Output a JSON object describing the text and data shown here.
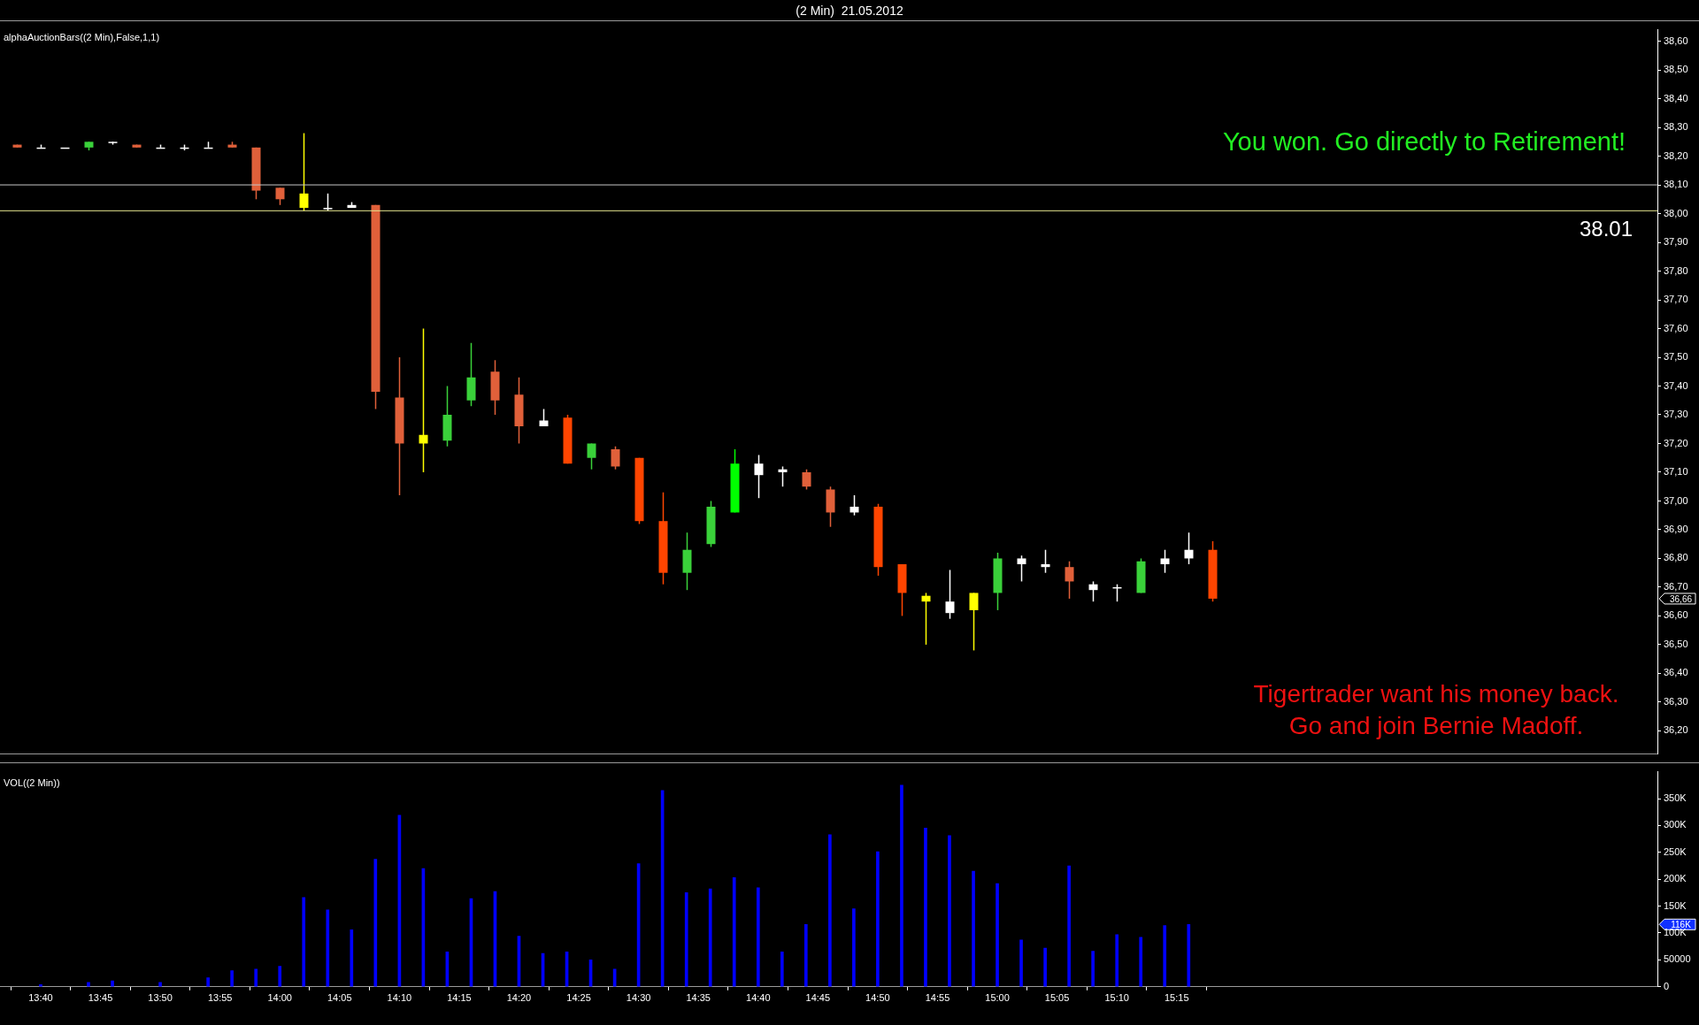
{
  "chart_data": [
    {
      "type": "candlestick",
      "title": "(2 Min)  21.05.2012",
      "x": [
        13.6333,
        13.6667,
        13.7,
        13.7333,
        13.7667,
        13.8,
        13.8333,
        13.8667,
        13.9,
        13.9333,
        13.9667,
        14,
        14.0333,
        14.0667,
        14.1,
        14.1333,
        14.1667,
        14.2,
        14.2333,
        14.2667,
        14.3,
        14.3333,
        14.3667,
        14.4,
        14.4333,
        14.4667,
        14.5,
        14.5333,
        14.5667,
        14.6,
        14.6333,
        14.6667,
        14.7,
        14.7333,
        14.7667,
        14.8,
        14.8333,
        14.8667,
        14.9,
        14.9333,
        14.9667,
        15,
        15.0333,
        15.0667,
        15.1,
        15.1333,
        15.1667,
        15.2,
        15.2333,
        15.2667,
        15.3
      ],
      "ohlc": [
        [
          38.24,
          38.24,
          38.23,
          38.23
        ],
        [
          38.23,
          38.24,
          38.23,
          38.23
        ],
        [
          38.23,
          38.23,
          38.23,
          38.23
        ],
        [
          38.23,
          38.25,
          38.22,
          38.25
        ],
        [
          38.25,
          38.25,
          38.24,
          38.25
        ],
        [
          38.24,
          38.24,
          38.23,
          38.23
        ],
        [
          38.23,
          38.24,
          38.23,
          38.23
        ],
        [
          38.23,
          38.24,
          38.22,
          38.23
        ],
        [
          38.23,
          38.25,
          38.23,
          38.23
        ],
        [
          38.24,
          38.25,
          38.23,
          38.23
        ],
        [
          38.23,
          38.23,
          38.05,
          38.08
        ],
        [
          38.09,
          38.09,
          38.03,
          38.05
        ],
        [
          38.07,
          38.28,
          38.01,
          38.02
        ],
        [
          38.02,
          38.07,
          38.01,
          38.02
        ],
        [
          38.03,
          38.04,
          38.02,
          38.02
        ],
        [
          38.03,
          38.03,
          37.32,
          37.38
        ],
        [
          37.36,
          37.5,
          37.02,
          37.2
        ],
        [
          37.2,
          37.6,
          37.1,
          37.23
        ],
        [
          37.21,
          37.4,
          37.19,
          37.3
        ],
        [
          37.35,
          37.55,
          37.33,
          37.43
        ],
        [
          37.45,
          37.49,
          37.3,
          37.35
        ],
        [
          37.37,
          37.43,
          37.2,
          37.26
        ],
        [
          37.26,
          37.32,
          37.26,
          37.28
        ],
        [
          37.29,
          37.3,
          37.13,
          37.13
        ],
        [
          37.15,
          37.2,
          37.11,
          37.2
        ],
        [
          37.18,
          37.19,
          37.11,
          37.12
        ],
        [
          37.15,
          37.15,
          36.92,
          36.93
        ],
        [
          36.93,
          37.03,
          36.71,
          36.75
        ],
        [
          36.75,
          36.89,
          36.69,
          36.83
        ],
        [
          36.85,
          37,
          36.84,
          36.98
        ],
        [
          36.96,
          37.18,
          36.96,
          37.13
        ],
        [
          37.13,
          37.16,
          37.01,
          37.09
        ],
        [
          37.11,
          37.12,
          37.05,
          37.1
        ],
        [
          37.1,
          37.11,
          37.04,
          37.05
        ],
        [
          37.04,
          37.05,
          36.91,
          36.96
        ],
        [
          36.96,
          37.02,
          36.95,
          36.98
        ],
        [
          36.98,
          36.99,
          36.74,
          36.77
        ],
        [
          36.78,
          36.78,
          36.6,
          36.68
        ],
        [
          36.67,
          36.68,
          36.5,
          36.65
        ],
        [
          36.65,
          36.76,
          36.59,
          36.61
        ],
        [
          36.62,
          36.68,
          36.48,
          36.68
        ],
        [
          36.68,
          36.82,
          36.62,
          36.8
        ],
        [
          36.8,
          36.81,
          36.72,
          36.78
        ],
        [
          36.77,
          36.83,
          36.75,
          36.78
        ],
        [
          36.77,
          36.79,
          36.66,
          36.72
        ],
        [
          36.71,
          36.72,
          36.65,
          36.69
        ],
        [
          36.7,
          36.71,
          36.65,
          36.7
        ],
        [
          36.68,
          36.8,
          36.68,
          36.79
        ],
        [
          36.78,
          36.83,
          36.75,
          36.8
        ],
        [
          36.8,
          36.89,
          36.78,
          36.83
        ],
        [
          36.83,
          36.86,
          36.65,
          36.66
        ]
      ],
      "colors": [
        "#e0603a",
        "#ffffff",
        "#ffffff",
        "#3ad13a",
        "#ffffff",
        "#e0603a",
        "#ffffff",
        "#ffffff",
        "#ffffff",
        "#e0603a",
        "#e0603a",
        "#e0603a",
        "#ffff00",
        "#ffffff",
        "#ffffff",
        "#e0603a",
        "#e0603a",
        "#ffff00",
        "#3ad13a",
        "#3ad13a",
        "#e0603a",
        "#e0603a",
        "#ffffff",
        "#ff4500",
        "#3ad13a",
        "#e0603a",
        "#ff4500",
        "#ff4500",
        "#3ad13a",
        "#3ad13a",
        "#00ff00",
        "#ffffff",
        "#ffffff",
        "#e0603a",
        "#e0603a",
        "#ffffff",
        "#ff4500",
        "#ff4500",
        "#ffff00",
        "#ffffff",
        "#ffff00",
        "#3ad13a",
        "#ffffff",
        "#ffffff",
        "#e0603a",
        "#ffffff",
        "#ffffff",
        "#3ad13a",
        "#ffffff",
        "#ffffff",
        "#ff4500"
      ],
      "xlim": [
        13.61,
        15.92
      ],
      "ylim": [
        36.12,
        38.64
      ],
      "yticks": [
        {
          "value": 36.2,
          "label": "36,20"
        },
        {
          "value": 36.3,
          "label": "36,30"
        },
        {
          "value": 36.4,
          "label": "36,40"
        },
        {
          "value": 36.5,
          "label": "36,50"
        },
        {
          "value": 36.6,
          "label": "36,60"
        },
        {
          "value": 36.7,
          "label": "36,70"
        },
        {
          "value": 36.8,
          "label": "36,80"
        },
        {
          "value": 36.9,
          "label": "36,90"
        },
        {
          "value": 37,
          "label": "37,00"
        },
        {
          "value": 37.1,
          "label": "37,10"
        },
        {
          "value": 37.2,
          "label": "37,20"
        },
        {
          "value": 37.3,
          "label": "37,30"
        },
        {
          "value": 37.4,
          "label": "37,40"
        },
        {
          "value": 37.5,
          "label": "37,50"
        },
        {
          "value": 37.6,
          "label": "37,60"
        },
        {
          "value": 37.7,
          "label": "37,70"
        },
        {
          "value": 37.8,
          "label": "37,80"
        },
        {
          "value": 37.9,
          "label": "37,90"
        },
        {
          "value": 38,
          "label": "38,00"
        },
        {
          "value": 38.1,
          "label": "38,10"
        },
        {
          "value": 38.2,
          "label": "38,20"
        },
        {
          "value": 38.3,
          "label": "38,30"
        },
        {
          "value": 38.4,
          "label": "38,40"
        },
        {
          "value": 38.5,
          "label": "38,50"
        },
        {
          "value": 38.6,
          "label": "38,60"
        }
      ],
      "ref_lines": [
        {
          "axis": "y",
          "value": 38.1,
          "color": "#c8c8c8"
        },
        {
          "axis": "y",
          "value": 38.01,
          "label": "38.01",
          "color": "#e8e890"
        }
      ],
      "annotations": [
        "alphaAuctionBars((2 Min),False,1,1)",
        "You won. Go directly to Retirement!",
        "Tigertrader want his money back.",
        "Go and join Bernie Madoff.",
        "36,66"
      ],
      "tick_labels": "y",
      "grid": false,
      "legend": false
    },
    {
      "type": "bar",
      "x": [
        13.6667,
        13.7333,
        13.7667,
        13.8333,
        13.9,
        13.9333,
        13.9667,
        14,
        14.0333,
        14.0667,
        14.1,
        14.1333,
        14.1667,
        14.2,
        14.2333,
        14.2667,
        14.3,
        14.3333,
        14.3667,
        14.4,
        14.4333,
        14.4667,
        14.5,
        14.5333,
        14.5667,
        14.6,
        14.6333,
        14.6667,
        14.7,
        14.7333,
        14.7667,
        14.8,
        14.8333,
        14.8667,
        14.9,
        14.9333,
        14.9667,
        15,
        15.0333,
        15.0667,
        15.1,
        15.1333,
        15.1667,
        15.2,
        15.2333,
        15.2667
      ],
      "values": [
        4000,
        8000,
        11000,
        8000,
        17000,
        30000,
        33000,
        38000,
        166000,
        143000,
        106000,
        237000,
        319000,
        220000,
        65000,
        164000,
        177000,
        94000,
        62000,
        65000,
        50000,
        33000,
        229000,
        365000,
        175000,
        182000,
        203000,
        184000,
        65000,
        116000,
        283000,
        145000,
        251000,
        375000,
        295000,
        281000,
        215000,
        192000,
        87000,
        72000,
        225000,
        66000,
        97000,
        92000,
        114000,
        116000
      ],
      "color": "#0000ff",
      "xlim": [
        13.61,
        15.92
      ],
      "ylim": [
        0,
        400000
      ],
      "xticks": [
        {
          "value": 13.6667,
          "label": "13:40"
        },
        {
          "value": 13.75,
          "label": "13:45"
        },
        {
          "value": 13.8333,
          "label": "13:50"
        },
        {
          "value": 13.9167,
          "label": "13:55"
        },
        {
          "value": 14,
          "label": "14:00"
        },
        {
          "value": 14.0833,
          "label": "14:05"
        },
        {
          "value": 14.1667,
          "label": "14:10"
        },
        {
          "value": 14.25,
          "label": "14:15"
        },
        {
          "value": 14.3333,
          "label": "14:20"
        },
        {
          "value": 14.4167,
          "label": "14:25"
        },
        {
          "value": 14.5,
          "label": "14:30"
        },
        {
          "value": 14.5833,
          "label": "14:35"
        },
        {
          "value": 14.6667,
          "label": "14:40"
        },
        {
          "value": 14.75,
          "label": "14:45"
        },
        {
          "value": 14.8333,
          "label": "14:50"
        },
        {
          "value": 14.9167,
          "label": "14:55"
        },
        {
          "value": 15,
          "label": "15:00"
        },
        {
          "value": 15.0833,
          "label": "15:05"
        },
        {
          "value": 15.1667,
          "label": "15:10"
        },
        {
          "value": 15.25,
          "label": "15:15"
        }
      ],
      "yticks": [
        0,
        50000,
        {
          "value": 100000,
          "label": "100K"
        },
        {
          "value": 150000,
          "label": "150K"
        },
        {
          "value": 200000,
          "label": "200K"
        },
        {
          "value": 250000,
          "label": "250K"
        },
        {
          "value": 300000,
          "label": "300K"
        },
        {
          "value": 350000,
          "label": "350K"
        }
      ],
      "annotations": [
        "VOL((2 Min))",
        "116K"
      ],
      "grid": false,
      "legend": false
    }
  ]
}
